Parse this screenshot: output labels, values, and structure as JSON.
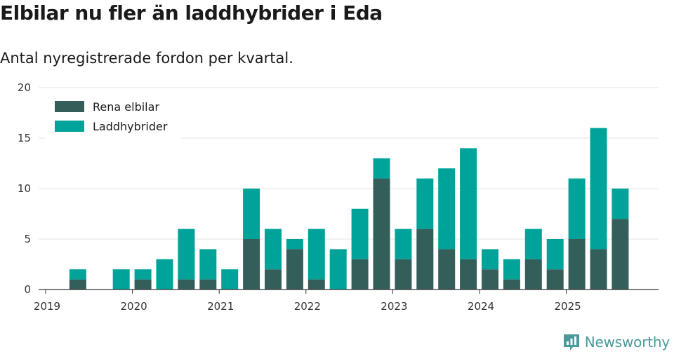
{
  "chart_data": {
    "type": "bar",
    "stacked": true,
    "title": "Elbilar nu fler än laddhybrider i Eda",
    "subtitle": "Antal nyregistrerade fordon per kvartal.",
    "xlabel": "",
    "ylabel": "",
    "ylim": [
      0,
      20
    ],
    "yticks": [
      0,
      5,
      10,
      15,
      20
    ],
    "xticks": [
      "2019",
      "2020",
      "2021",
      "2022",
      "2023",
      "2024",
      "2025"
    ],
    "categories": [
      "2019 Q2",
      "2019 Q3",
      "2019 Q4",
      "2020 Q1",
      "2020 Q2",
      "2020 Q3",
      "2020 Q4",
      "2021 Q1",
      "2021 Q2",
      "2021 Q3",
      "2021 Q4",
      "2022 Q1",
      "2022 Q2",
      "2022 Q3",
      "2022 Q4",
      "2023 Q1",
      "2023 Q2",
      "2023 Q3",
      "2023 Q4",
      "2024 Q1",
      "2024 Q2",
      "2024 Q3",
      "2024 Q4",
      "2025 Q1",
      "2025 Q2",
      "2025 Q3"
    ],
    "series": [
      {
        "name": "Rena elbilar",
        "color": "#345e5a",
        "values": [
          1,
          0,
          0,
          1,
          0,
          1,
          1,
          0,
          5,
          2,
          4,
          1,
          0,
          3,
          11,
          3,
          6,
          4,
          3,
          2,
          1,
          3,
          2,
          5,
          4,
          7
        ]
      },
      {
        "name": "Laddhybrider",
        "color": "#00a39a",
        "values": [
          1,
          0,
          2,
          1,
          3,
          5,
          3,
          2,
          5,
          4,
          1,
          5,
          4,
          5,
          2,
          3,
          5,
          8,
          11,
          2,
          2,
          3,
          3,
          6,
          12,
          3
        ]
      }
    ],
    "legend_position": "top-left",
    "grid": true
  },
  "brand": {
    "name": "Newsworthy"
  }
}
